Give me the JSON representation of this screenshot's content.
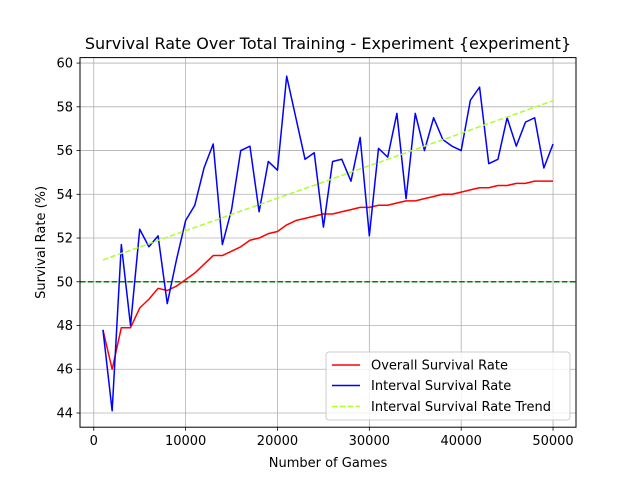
{
  "chart_data": {
    "type": "line",
    "title": "Survival Rate Over Total Training - Experiment {experiment}",
    "xlabel": "Number of Games",
    "ylabel": "Survival Rate (%)",
    "xlim": [
      -1500,
      52500
    ],
    "ylim": [
      43.35,
      60.25
    ],
    "xticks": [
      0,
      10000,
      20000,
      30000,
      40000,
      50000
    ],
    "xtick_labels": [
      "0",
      "10000",
      "20000",
      "30000",
      "40000",
      "50000"
    ],
    "yticks": [
      44,
      46,
      48,
      50,
      52,
      54,
      56,
      58,
      60
    ],
    "ytick_labels": [
      "44",
      "46",
      "48",
      "50",
      "52",
      "54",
      "56",
      "58",
      "60"
    ],
    "grid": true,
    "legend_position": "lower-right",
    "x": [
      1000,
      2000,
      3000,
      4000,
      5000,
      6000,
      7000,
      8000,
      9000,
      10000,
      11000,
      12000,
      13000,
      14000,
      15000,
      16000,
      17000,
      18000,
      19000,
      20000,
      21000,
      22000,
      23000,
      24000,
      25000,
      26000,
      27000,
      28000,
      29000,
      30000,
      31000,
      32000,
      33000,
      34000,
      35000,
      36000,
      37000,
      38000,
      39000,
      40000,
      41000,
      42000,
      43000,
      44000,
      45000,
      46000,
      47000,
      48000,
      49000,
      50000
    ],
    "series": [
      {
        "name": "Overall Survival Rate",
        "color": "#ff0000",
        "style": "solid",
        "values": [
          47.8,
          46.0,
          47.9,
          47.9,
          48.8,
          49.2,
          49.7,
          49.6,
          49.8,
          50.1,
          50.4,
          50.8,
          51.2,
          51.2,
          51.4,
          51.6,
          51.9,
          52.0,
          52.2,
          52.3,
          52.6,
          52.8,
          52.9,
          53.0,
          53.1,
          53.1,
          53.2,
          53.3,
          53.4,
          53.4,
          53.5,
          53.5,
          53.6,
          53.7,
          53.7,
          53.8,
          53.9,
          54.0,
          54.0,
          54.1,
          54.2,
          54.3,
          54.3,
          54.4,
          54.4,
          54.5,
          54.5,
          54.6,
          54.6,
          54.6
        ]
      },
      {
        "name": "Interval Survival Rate",
        "color": "#0000ff",
        "style": "solid",
        "values": [
          47.8,
          44.1,
          51.7,
          48.0,
          52.4,
          51.6,
          52.1,
          49.0,
          51.0,
          52.8,
          53.5,
          55.2,
          56.3,
          51.7,
          53.3,
          56.0,
          56.2,
          53.2,
          55.5,
          55.1,
          59.4,
          57.5,
          55.6,
          55.9,
          52.5,
          55.5,
          55.6,
          54.6,
          56.6,
          52.1,
          56.1,
          55.7,
          57.7,
          53.8,
          57.7,
          56.0,
          57.5,
          56.5,
          56.2,
          56.0,
          58.3,
          58.9,
          55.4,
          55.6,
          57.5,
          56.2,
          57.3,
          57.5,
          55.2,
          56.3
        ]
      },
      {
        "name": "Interval Survival Rate Trend",
        "color": "#adff2f",
        "style": "dashed",
        "values": [
          51.0,
          51.15,
          51.3,
          51.44,
          51.59,
          51.74,
          51.89,
          52.04,
          52.19,
          52.34,
          52.48,
          52.63,
          52.78,
          52.93,
          53.08,
          53.23,
          53.38,
          53.52,
          53.67,
          53.82,
          53.97,
          54.12,
          54.27,
          54.41,
          54.56,
          54.71,
          54.86,
          55.01,
          55.16,
          55.31,
          55.45,
          55.6,
          55.75,
          55.9,
          56.05,
          56.2,
          56.35,
          56.49,
          56.64,
          56.79,
          56.94,
          57.09,
          57.24,
          57.39,
          57.53,
          57.68,
          57.83,
          57.98,
          58.13,
          58.28
        ]
      }
    ],
    "reference_lines": [
      {
        "y": 50,
        "color": "#008000",
        "style": "dashed"
      }
    ]
  }
}
